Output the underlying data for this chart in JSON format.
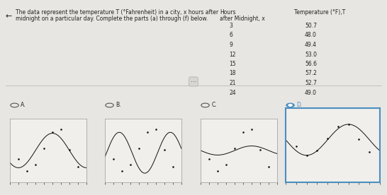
{
  "title_text_line1": "The data represent the temperature T (°Fahrenheit) in a city, x hours after",
  "title_text_line2": "midnight on a particular day. Complete the parts (a) through (f) below.",
  "col1_header_line1": "Hours",
  "col1_header_line2": "after Midnight, x",
  "col2_header": "Temperature (°F),T",
  "hours": [
    3,
    6,
    9,
    12,
    15,
    18,
    21,
    24
  ],
  "temps": [
    50.7,
    48.0,
    49.4,
    53.0,
    56.6,
    57.2,
    52.7,
    49.0
  ],
  "options": [
    "A.",
    "B.",
    "C.",
    "D."
  ],
  "selected": "D.",
  "bg_color": "#e8e6e2",
  "text_color": "#222222",
  "plot_bg": "#f0efec",
  "selected_border_color": "#4a8fc0",
  "radio_selected_color": "#4a8fc0",
  "dot_color": "#111111",
  "curve_color": "#111111",
  "divider_color": "#bbbbbb",
  "xlim_plots": [
    0,
    27
  ],
  "ylim_A": [
    45.5,
    59.5
  ],
  "ylim_B": [
    45.5,
    59.5
  ],
  "ylim_C": [
    45.5,
    59.5
  ],
  "ylim_D": [
    40,
    62
  ]
}
